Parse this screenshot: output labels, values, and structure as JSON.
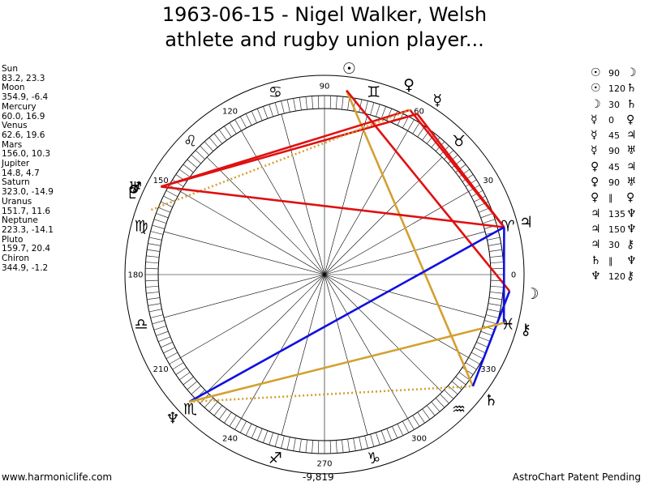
{
  "title": {
    "line1": "1963-06-15 - Nigel Walker, Welsh",
    "line2": "athlete and rugby union player..."
  },
  "chart_data": {
    "type": "astrological-wheel",
    "degree_labels": [
      "0",
      "30",
      "60",
      "90",
      "120",
      "150",
      "180",
      "210",
      "240",
      "270",
      "300",
      "330"
    ],
    "planets": [
      {
        "name": "Sun",
        "glyph": "☉",
        "coords": "83.2, 23.3",
        "longitude": 83.2,
        "latitude": 23.3
      },
      {
        "name": "Moon",
        "glyph": "☽",
        "coords": "354.9, -6.4",
        "longitude": 354.9,
        "latitude": -6.4
      },
      {
        "name": "Mercury",
        "glyph": "☿",
        "coords": "60.0, 16.9",
        "longitude": 60.0,
        "latitude": 16.9
      },
      {
        "name": "Venus",
        "glyph": "♀",
        "coords": "62.6, 19.6",
        "longitude": 62.6,
        "latitude": 19.6
      },
      {
        "name": "Mars",
        "glyph": "♂",
        "coords": "156.0, 10.3",
        "longitude": 156.0,
        "latitude": 10.3
      },
      {
        "name": "Jupiter",
        "glyph": "♃",
        "coords": "14.8, 4.7",
        "longitude": 14.8,
        "latitude": 4.7
      },
      {
        "name": "Saturn",
        "glyph": "♄",
        "coords": "323.0, -14.9",
        "longitude": 323.0,
        "latitude": -14.9
      },
      {
        "name": "Uranus",
        "glyph": "♅",
        "coords": "151.7, 11.6",
        "longitude": 151.7,
        "latitude": 11.6
      },
      {
        "name": "Neptune",
        "glyph": "♆",
        "coords": "223.3, -14.1",
        "longitude": 223.3,
        "latitude": -14.1
      },
      {
        "name": "Pluto",
        "glyph": "♇",
        "coords": "159.7, 20.4",
        "longitude": 159.7,
        "latitude": 20.4
      },
      {
        "name": "Chiron",
        "glyph": "⚷",
        "coords": "344.9, -1.2",
        "longitude": 344.9,
        "latitude": -1.2
      }
    ],
    "signs": [
      {
        "glyph": "♈",
        "longitude": 15
      },
      {
        "glyph": "♉",
        "longitude": 45
      },
      {
        "glyph": "♊",
        "longitude": 75
      },
      {
        "glyph": "♋",
        "longitude": 105
      },
      {
        "glyph": "♌",
        "longitude": 135
      },
      {
        "glyph": "♍",
        "longitude": 165
      },
      {
        "glyph": "♎",
        "longitude": 195
      },
      {
        "glyph": "♏",
        "longitude": 225
      },
      {
        "glyph": "♐",
        "longitude": 255
      },
      {
        "glyph": "♑",
        "longitude": 285
      },
      {
        "glyph": "♒",
        "longitude": 315
      },
      {
        "glyph": "♓",
        "longitude": 345
      }
    ],
    "aspect_lines": [
      {
        "from": "Sun",
        "to": "Saturn",
        "color": "#d4a030",
        "style": "solid"
      },
      {
        "from": "Sun",
        "to": "Moon",
        "color": "#e01010",
        "style": "solid"
      },
      {
        "from": "Mercury",
        "to": "Jupiter",
        "color": "#e01010",
        "style": "solid"
      },
      {
        "from": "Venus",
        "to": "Jupiter",
        "color": "#e01010",
        "style": "solid"
      },
      {
        "from": "Mercury",
        "to": "Uranus",
        "color": "#e01010",
        "style": "solid"
      },
      {
        "from": "Venus",
        "to": "Uranus",
        "color": "#e01010",
        "style": "solid"
      },
      {
        "from": "Venus",
        "to": "Pluto",
        "color": "#d4a030",
        "style": "dotted"
      },
      {
        "from": "Jupiter",
        "to": "Uranus",
        "color": "#e01010",
        "style": "solid"
      },
      {
        "from": "Jupiter",
        "to": "Chiron",
        "color": "#1010e0",
        "style": "solid"
      },
      {
        "from": "Jupiter",
        "to": "Neptune",
        "color": "#1010e0",
        "style": "solid"
      },
      {
        "from": "Moon",
        "to": "Saturn",
        "color": "#1010e0",
        "style": "solid"
      },
      {
        "from": "Neptune",
        "to": "Chiron",
        "color": "#d4a030",
        "style": "solid"
      },
      {
        "from": "Neptune",
        "to": "Saturn",
        "color": "#d4a030",
        "style": "dotted"
      }
    ]
  },
  "aspects_list": [
    {
      "p1": "☉",
      "type": "90",
      "p2": "☽"
    },
    {
      "p1": "☉",
      "type": "120",
      "p2": "♄"
    },
    {
      "p1": "☽",
      "type": "30",
      "p2": "♄"
    },
    {
      "p1": "☿",
      "type": "0",
      "p2": "♀"
    },
    {
      "p1": "☿",
      "type": "45",
      "p2": "♃"
    },
    {
      "p1": "☿",
      "type": "90",
      "p2": "♅"
    },
    {
      "p1": "♀",
      "type": "45",
      "p2": "♃"
    },
    {
      "p1": "♀",
      "type": "90",
      "p2": "♅"
    },
    {
      "p1": "♀",
      "type": "∥",
      "p2": "♀"
    },
    {
      "p1": "♃",
      "type": "135",
      "p2": "♆"
    },
    {
      "p1": "♃",
      "type": "150",
      "p2": "♆"
    },
    {
      "p1": "♃",
      "type": "30",
      "p2": "⚷"
    },
    {
      "p1": "♄",
      "type": "∥",
      "p2": "♆"
    },
    {
      "p1": "♆",
      "type": "120",
      "p2": "⚷"
    }
  ],
  "footer": {
    "url": "www.harmoniclife.com",
    "center_value": "-9,819",
    "patent": "AstroChart Patent Pending"
  }
}
